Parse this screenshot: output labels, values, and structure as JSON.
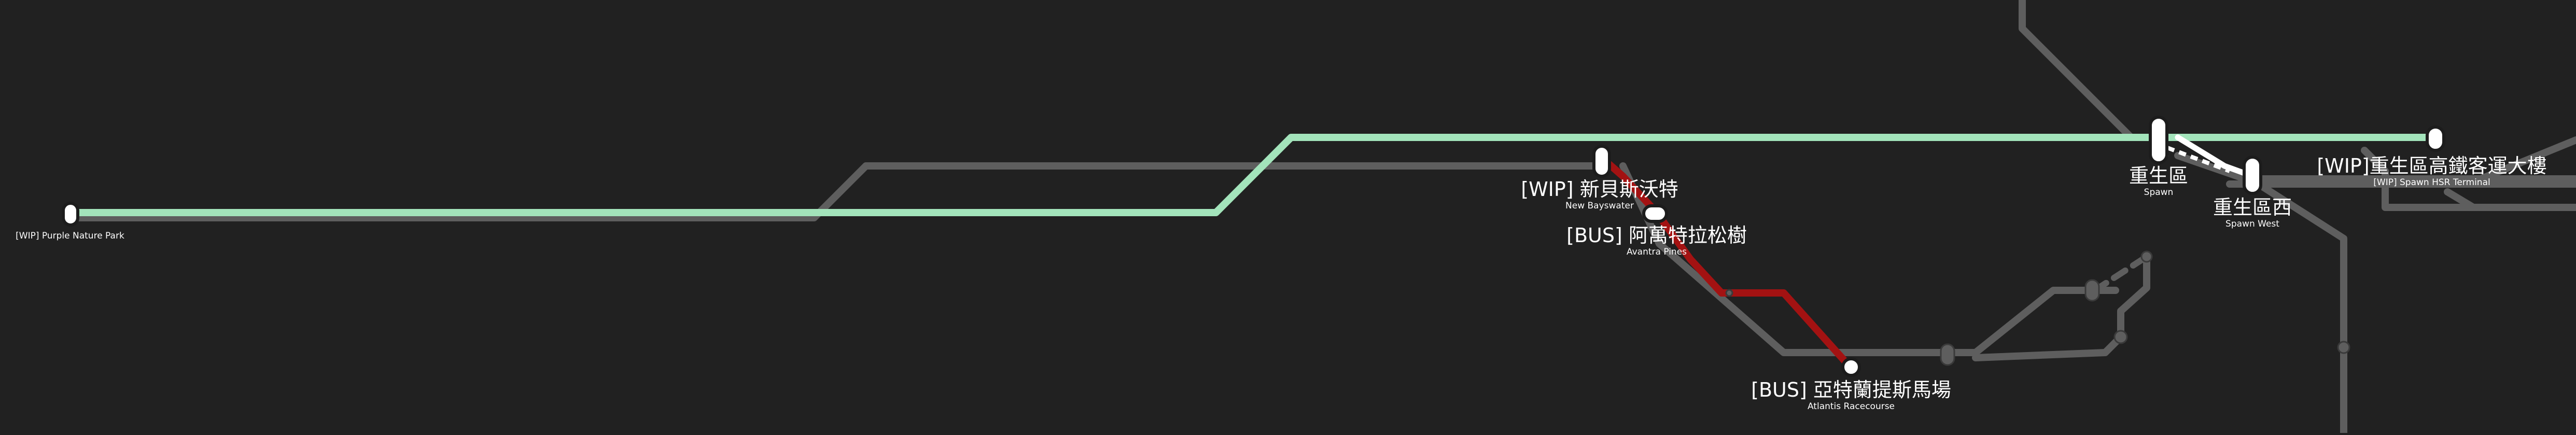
{
  "map": {
    "colors": {
      "background": "#212121",
      "other_lines": "#5e5e5e",
      "green_line": "#a3e4bb",
      "red_line": "#a31212",
      "station_fill": "#ffffff"
    },
    "stations": {
      "purple_nature_park": {
        "name": "",
        "sub": "[WIP] Purple Nature Park"
      },
      "new_bayswater": {
        "name": "[WIP] 新貝斯沃特",
        "sub": "New Bayswater"
      },
      "avantra_pines": {
        "name": "[BUS] 阿萬特拉松樹",
        "sub": "Avantra Pines"
      },
      "atlantis_racecourse": {
        "name": "[BUS] 亞特蘭提斯馬場",
        "sub": "Atlantis Racecourse"
      },
      "spawn": {
        "name": "重生區",
        "sub": "Spawn"
      },
      "spawn_west": {
        "name": "重生區西",
        "sub": "Spawn West"
      },
      "spawn_hsr_terminal": {
        "name": "[WIP]重生區高鐵客運大樓",
        "sub": "[WIP] Spawn HSR Terminal"
      }
    }
  }
}
